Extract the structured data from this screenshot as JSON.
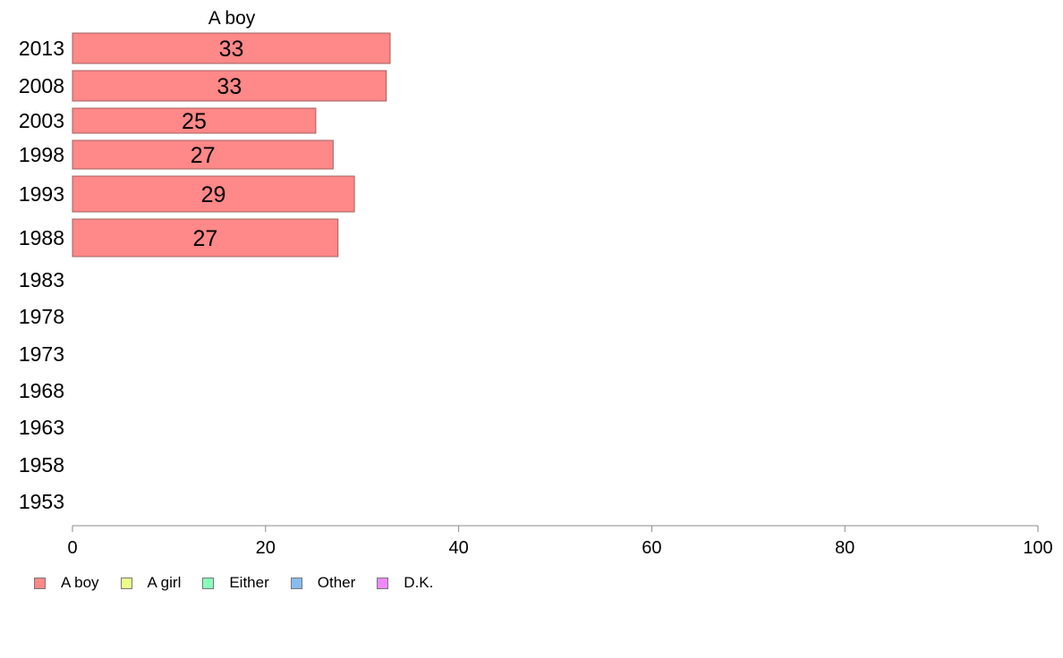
{
  "chart_data": {
    "type": "bar",
    "orientation": "horizontal",
    "panel_title": "A boy",
    "categories": [
      "2013",
      "2008",
      "2003",
      "1998",
      "1993",
      "1988",
      "1983",
      "1978",
      "1973",
      "1968",
      "1963",
      "1958",
      "1953"
    ],
    "series": [
      {
        "name": "A boy",
        "color": "#ff8888",
        "values": [
          33,
          33,
          25,
          27,
          29,
          27,
          null,
          null,
          null,
          null,
          null,
          null,
          null
        ],
        "plotted": [
          32.9,
          32.5,
          25.2,
          27.0,
          29.2,
          27.5,
          null,
          null,
          null,
          null,
          null,
          null,
          null
        ]
      }
    ],
    "xlim": [
      0,
      100
    ],
    "xticks": [
      "0",
      "20",
      "40",
      "60",
      "80",
      "100"
    ],
    "grid": false,
    "legend_position": "bottom-left",
    "xlabel": "",
    "ylabel": ""
  },
  "legend": [
    {
      "label": "A boy",
      "color": "#ff8888"
    },
    {
      "label": "A girl",
      "color": "#eeff88"
    },
    {
      "label": "Either",
      "color": "#88ffbb"
    },
    {
      "label": "Other",
      "color": "#88bbee"
    },
    {
      "label": "D.K.",
      "color": "#ee88ff"
    }
  ]
}
